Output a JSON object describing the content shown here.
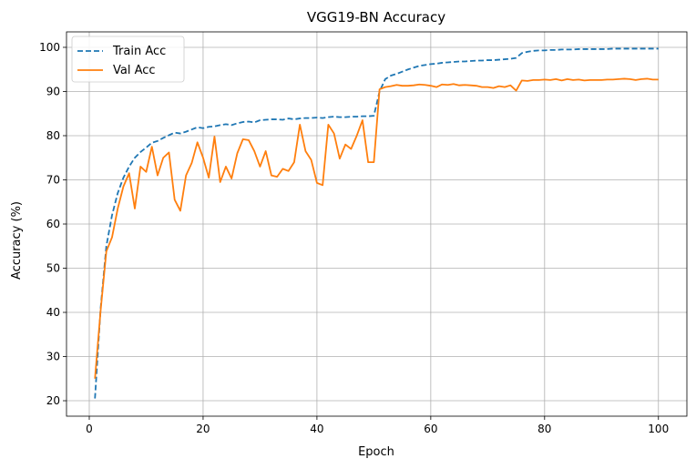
{
  "chart_data": {
    "type": "line",
    "title": "VGG19-BN Accuracy",
    "xlabel": "Epoch",
    "ylabel": "Accuracy (%)",
    "xlim": [
      -4,
      105
    ],
    "ylim": [
      16.5,
      103.5
    ],
    "xticks": [
      0,
      20,
      40,
      60,
      80,
      100
    ],
    "yticks": [
      20,
      30,
      40,
      50,
      60,
      70,
      80,
      90,
      100
    ],
    "grid": true,
    "legend_position": "upper-left",
    "x": [
      1,
      2,
      3,
      4,
      5,
      6,
      7,
      8,
      9,
      10,
      11,
      12,
      13,
      14,
      15,
      16,
      17,
      18,
      19,
      20,
      21,
      22,
      23,
      24,
      25,
      26,
      27,
      28,
      29,
      30,
      31,
      32,
      33,
      34,
      35,
      36,
      37,
      38,
      39,
      40,
      41,
      42,
      43,
      44,
      45,
      46,
      47,
      48,
      49,
      50,
      51,
      52,
      53,
      54,
      55,
      56,
      57,
      58,
      59,
      60,
      61,
      62,
      63,
      64,
      65,
      66,
      67,
      68,
      69,
      70,
      71,
      72,
      73,
      74,
      75,
      76,
      77,
      78,
      79,
      80,
      81,
      82,
      83,
      84,
      85,
      86,
      87,
      88,
      89,
      90,
      91,
      92,
      93,
      94,
      95,
      96,
      97,
      98,
      99,
      100
    ],
    "series": [
      {
        "name": "Train Acc",
        "color": "#1f77b4",
        "style": "dashed",
        "values": [
          20.5,
          41.0,
          55.0,
          62.0,
          67.0,
          70.5,
          73.0,
          75.0,
          76.3,
          77.3,
          78.4,
          78.8,
          79.5,
          80.1,
          80.7,
          80.5,
          80.9,
          81.4,
          81.9,
          81.7,
          82.0,
          82.1,
          82.4,
          82.6,
          82.4,
          82.8,
          83.1,
          83.2,
          83.0,
          83.5,
          83.6,
          83.7,
          83.7,
          83.6,
          83.9,
          83.7,
          83.9,
          84.0,
          84.0,
          84.1,
          84.0,
          84.2,
          84.3,
          84.2,
          84.2,
          84.3,
          84.3,
          84.4,
          84.4,
          84.5,
          90.0,
          92.8,
          93.6,
          94.0,
          94.5,
          95.0,
          95.4,
          95.8,
          96.0,
          96.2,
          96.3,
          96.5,
          96.6,
          96.7,
          96.8,
          96.8,
          96.9,
          97.0,
          97.0,
          97.1,
          97.1,
          97.2,
          97.3,
          97.4,
          97.6,
          98.7,
          99.0,
          99.2,
          99.3,
          99.3,
          99.4,
          99.4,
          99.5,
          99.5,
          99.5,
          99.6,
          99.6,
          99.6,
          99.6,
          99.6,
          99.6,
          99.7,
          99.7,
          99.7,
          99.7,
          99.7,
          99.7,
          99.7,
          99.7,
          99.7
        ]
      },
      {
        "name": "Val Acc",
        "color": "#ff7f0e",
        "style": "solid",
        "values": [
          25.0,
          40.5,
          53.8,
          57.0,
          63.5,
          68.5,
          71.5,
          63.5,
          73.0,
          71.8,
          77.5,
          71.0,
          75.0,
          76.2,
          65.5,
          63.0,
          71.0,
          73.8,
          78.5,
          75.0,
          70.5,
          79.8,
          69.5,
          73.0,
          70.3,
          76.0,
          79.2,
          79.0,
          76.5,
          73.0,
          76.5,
          71.0,
          70.7,
          72.5,
          72.0,
          74.0,
          82.5,
          76.5,
          74.5,
          69.3,
          68.8,
          82.5,
          80.5,
          74.8,
          78.0,
          77.0,
          80.0,
          83.5,
          74.0,
          74.0,
          90.5,
          91.0,
          91.2,
          91.5,
          91.3,
          91.3,
          91.4,
          91.6,
          91.5,
          91.3,
          91.0,
          91.6,
          91.5,
          91.7,
          91.4,
          91.5,
          91.4,
          91.3,
          91.0,
          91.0,
          90.8,
          91.2,
          91.0,
          91.4,
          90.2,
          92.5,
          92.4,
          92.6,
          92.6,
          92.7,
          92.6,
          92.8,
          92.5,
          92.8,
          92.6,
          92.7,
          92.5,
          92.6,
          92.6,
          92.6,
          92.7,
          92.7,
          92.8,
          92.9,
          92.8,
          92.6,
          92.8,
          92.9,
          92.7,
          92.7
        ]
      }
    ]
  }
}
